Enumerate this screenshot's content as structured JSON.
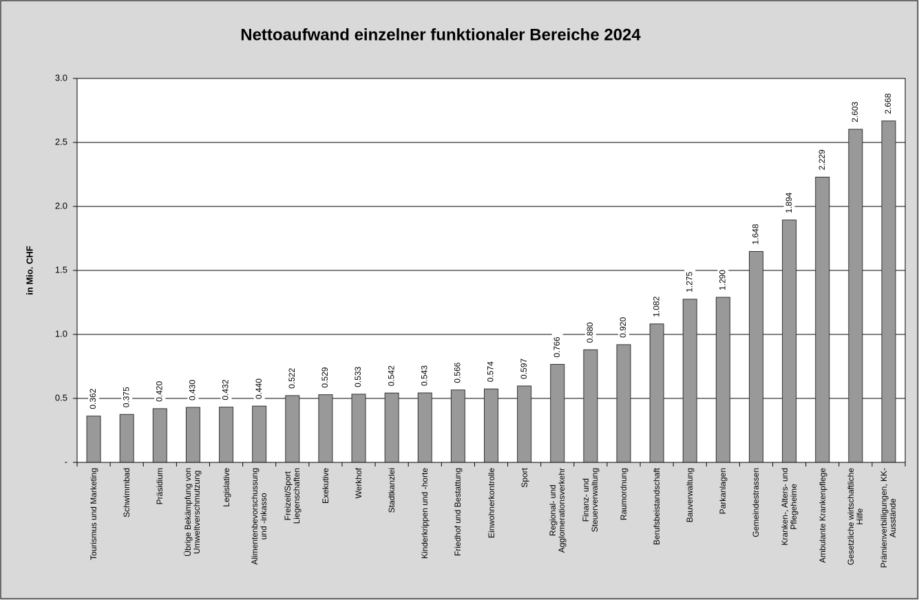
{
  "chart_data": {
    "type": "bar",
    "title": "Nettoaufwand einzelner funktionaler Bereiche 2024",
    "y_label": "in Mio. CHF",
    "categories": [
      "Tourismus und Marketing",
      "Schwimmbad",
      "Präsidium",
      "Übrige Bekämpfung von\nUmweltverschmutzung",
      "Legislative",
      "Alimentenbevorschussung\nund -inkasso",
      "Freizeit/Sport\nLiegenschaften",
      "Exekutive",
      "Werkhof",
      "Stadtkanzlei",
      "Kinderkrippen und -horte",
      "Friedhof und Bestattung",
      "Einwohnerkontrolle",
      "Sport",
      "Regional- und\nAgglomerationsverkehr",
      "Finanz- und\nSteuerverwaltung",
      "Raumordnung",
      "Berufsbeistandschaft",
      "Bauverwaltung",
      "Parkanlagen",
      "Gemeindestrassen",
      "Kranken-, Alters- und\nPflegeheime",
      "Ambulante Krankenpflege",
      "Gesetzliche wirtschaftliche\nHilfe",
      "Prämienverbilligungen, KK-\nAusstände"
    ],
    "values": [
      0.362,
      0.375,
      0.42,
      0.43,
      0.432,
      0.44,
      0.522,
      0.529,
      0.533,
      0.542,
      0.543,
      0.566,
      0.574,
      0.597,
      0.766,
      0.88,
      0.92,
      1.082,
      1.275,
      1.29,
      1.648,
      1.894,
      2.229,
      2.603,
      2.668
    ],
    "value_labels": [
      "0.362",
      "0.375",
      "0.420",
      "0.430",
      "0.432",
      "0.440",
      "0.522",
      "0.529",
      "0.533",
      "0.542",
      "0.543",
      "0.566",
      "0.574",
      "0.597",
      "0.766",
      "0.880",
      "0.920",
      "1.082",
      "1.275",
      "1.290",
      "1.648",
      "1.894",
      "2.229",
      "2.603",
      "2.668"
    ],
    "color": "#999999",
    "ylim": [
      0,
      3
    ],
    "yticks": [
      {
        "value": 0,
        "label": "-"
      },
      0.5,
      {
        "value": 1,
        "label": "1.0"
      },
      1.5,
      {
        "value": 2,
        "label": "2.0"
      },
      2.5,
      {
        "value": 3,
        "label": "3.0"
      }
    ],
    "grid": true
  }
}
